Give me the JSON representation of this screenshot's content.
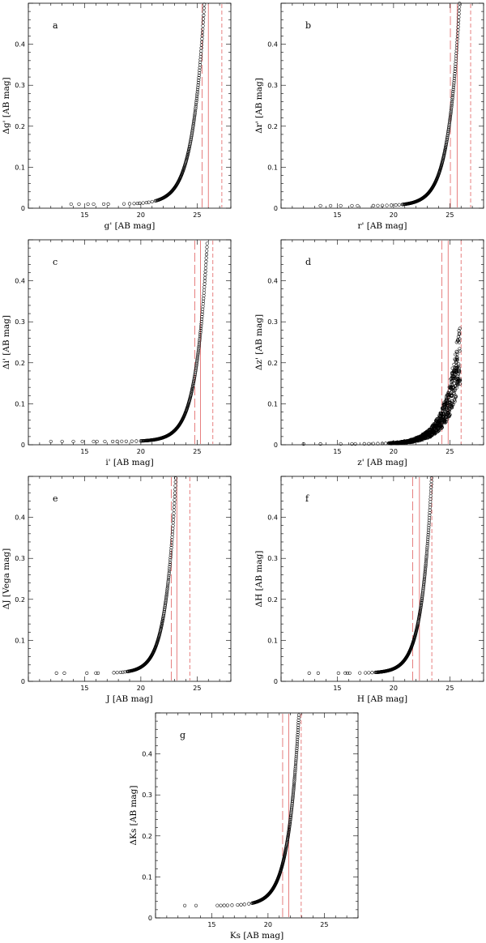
{
  "colors": {
    "limit_line": "#e06060",
    "points": "#000000",
    "frame": "#000000"
  },
  "chart_data": [
    {
      "id": "a",
      "type": "scatter",
      "panel_label": "a",
      "xlabel": "g'   [AB mag]",
      "ylabel": "Δg'  [AB mag]",
      "xlim": [
        10,
        28
      ],
      "ylim": [
        0,
        0.5
      ],
      "xticks": [
        15,
        20,
        25
      ],
      "yticks": [
        0,
        0.1,
        0.2,
        0.3,
        0.4
      ],
      "vlines": [
        {
          "x": 25.45,
          "style": "longdash"
        },
        {
          "x": 26.0,
          "style": "solid"
        },
        {
          "x": 27.2,
          "style": "shortdash"
        }
      ],
      "curve": {
        "a": 0.01,
        "b": 0.0023,
        "c": 0.95,
        "x0": 20,
        "xmax": 27.4,
        "scatter": 0.0
      },
      "sparse_x": [
        13.8,
        14.5,
        15.3,
        15.8,
        16.7,
        17.1,
        18.5,
        19.0,
        19.4,
        19.7,
        19.9,
        20.2,
        20.5,
        20.7,
        21.0,
        21.3
      ]
    },
    {
      "id": "b",
      "type": "scatter",
      "panel_label": "b",
      "xlabel": "r'   [AB mag]",
      "ylabel": "Δr'  [AB mag]",
      "xlim": [
        10,
        28
      ],
      "ylim": [
        0,
        0.5
      ],
      "xticks": [
        15,
        20,
        25
      ],
      "yticks": [
        0,
        0.1,
        0.2,
        0.3,
        0.4
      ],
      "vlines": [
        {
          "x": 25.05,
          "style": "longdash"
        },
        {
          "x": 25.65,
          "style": "solid"
        },
        {
          "x": 26.85,
          "style": "shortdash"
        }
      ],
      "curve": {
        "a": 0.006,
        "b": 0.0014,
        "c": 1.0,
        "x0": 20,
        "xmax": 26.6,
        "scatter": 0.0
      },
      "sparse_x": [
        13.5,
        14.4,
        15.3,
        16.3,
        16.8,
        18.2,
        18.6,
        19.0,
        19.4,
        19.8,
        20.2,
        20.5,
        20.8
      ]
    },
    {
      "id": "c",
      "type": "scatter",
      "panel_label": "c",
      "xlabel": "i'   [AB mag]",
      "ylabel": "Δi'  [AB mag]",
      "xlim": [
        10,
        28
      ],
      "ylim": [
        0,
        0.5
      ],
      "xticks": [
        15,
        20,
        25
      ],
      "yticks": [
        0,
        0.1,
        0.2,
        0.3,
        0.4
      ],
      "vlines": [
        {
          "x": 24.8,
          "style": "longdash"
        },
        {
          "x": 25.3,
          "style": "solid"
        },
        {
          "x": 26.4,
          "style": "shortdash"
        }
      ],
      "curve": {
        "a": 0.008,
        "b": 0.00133,
        "c": 1.0,
        "x0": 20,
        "xmax": 26.4,
        "scatter": 0.0
      },
      "sparse_x": [
        12.0,
        13.0,
        14.0,
        14.8,
        15.8,
        16.1,
        16.8,
        17.5,
        17.9,
        18.3,
        18.7,
        19.2,
        19.6,
        20.0
      ]
    },
    {
      "id": "d",
      "type": "scatter",
      "panel_label": "d",
      "xlabel": "z'   [AB mag]",
      "ylabel": "Δz'  [AB mag]",
      "xlim": [
        10,
        28
      ],
      "ylim": [
        0,
        0.5
      ],
      "xticks": [
        15,
        20,
        25
      ],
      "yticks": [
        0,
        0.1,
        0.2,
        0.3,
        0.4
      ],
      "vlines": [
        {
          "x": 24.3,
          "style": "longdash"
        },
        {
          "x": 24.85,
          "style": "solid"
        },
        {
          "x": 26.0,
          "style": "shortdash"
        }
      ],
      "curve": {
        "a": 0.002,
        "b": 0.0022,
        "c": 0.78,
        "x0": 20,
        "xmax": 25.9,
        "scatter": 0.35
      },
      "sparse_x": [
        12.0,
        13.5,
        15.3,
        16.3,
        16.6,
        17.4,
        17.8,
        18.2,
        18.6,
        19.0,
        19.3,
        19.6
      ]
    },
    {
      "id": "e",
      "type": "scatter",
      "panel_label": "e",
      "xlabel": "J   [AB mag]",
      "ylabel": "ΔJ  [Vega mag]",
      "xlim": [
        10,
        28
      ],
      "ylim": [
        0,
        0.5
      ],
      "xticks": [
        15,
        20,
        25
      ],
      "yticks": [
        0,
        0.1,
        0.2,
        0.3,
        0.4
      ],
      "vlines": [
        {
          "x": 22.7,
          "style": "longdash"
        },
        {
          "x": 23.2,
          "style": "solid"
        },
        {
          "x": 24.35,
          "style": "shortdash"
        }
      ],
      "curve": {
        "a": 0.02,
        "b": 0.0048,
        "c": 1.12,
        "x0": 19,
        "xmax": 24.4,
        "scatter": 0.0
      },
      "sparse_x": [
        12.5,
        13.2,
        15.2,
        16.0,
        16.2,
        17.6,
        17.9,
        18.2,
        18.4,
        18.6,
        18.8
      ]
    },
    {
      "id": "f",
      "type": "scatter",
      "panel_label": "f",
      "xlabel": "H   [AB mag]",
      "ylabel": "ΔH  [AB mag]",
      "xlim": [
        10,
        28
      ],
      "ylim": [
        0,
        0.5
      ],
      "xticks": [
        15,
        20,
        25
      ],
      "yticks": [
        0,
        0.1,
        0.2,
        0.3,
        0.4
      ],
      "vlines": [
        {
          "x": 21.7,
          "style": "longdash"
        },
        {
          "x": 22.3,
          "style": "solid"
        },
        {
          "x": 23.4,
          "style": "shortdash"
        }
      ],
      "curve": {
        "a": 0.02,
        "b": 0.0035,
        "c": 1.12,
        "x0": 19,
        "xmax": 23.4,
        "scatter": 0.0
      },
      "sparse_x": [
        12.5,
        13.3,
        15.1,
        15.7,
        15.9,
        16.1,
        17.0,
        17.5,
        17.8,
        18.1,
        18.4
      ]
    },
    {
      "id": "g",
      "type": "scatter",
      "panel_label": "g",
      "xlabel": "Ks   [AB mag]",
      "ylabel": "ΔKs  [AB mag]",
      "xlim": [
        10,
        28
      ],
      "ylim": [
        0,
        0.5
      ],
      "xticks": [
        15,
        20,
        25
      ],
      "yticks": [
        0,
        0.1,
        0.2,
        0.3,
        0.4
      ],
      "vlines": [
        {
          "x": 21.3,
          "style": "longdash"
        },
        {
          "x": 21.85,
          "style": "solid"
        },
        {
          "x": 22.95,
          "style": "shortdash"
        }
      ],
      "curve": {
        "a": 0.03,
        "b": 0.0125,
        "c": 1.05,
        "x0": 19.3,
        "xmax": 23.0,
        "scatter": 0.0
      },
      "sparse_x": [
        12.6,
        13.6,
        15.5,
        15.8,
        16.1,
        16.4,
        16.8,
        17.3,
        17.6,
        17.9,
        18.3,
        18.6
      ]
    }
  ]
}
